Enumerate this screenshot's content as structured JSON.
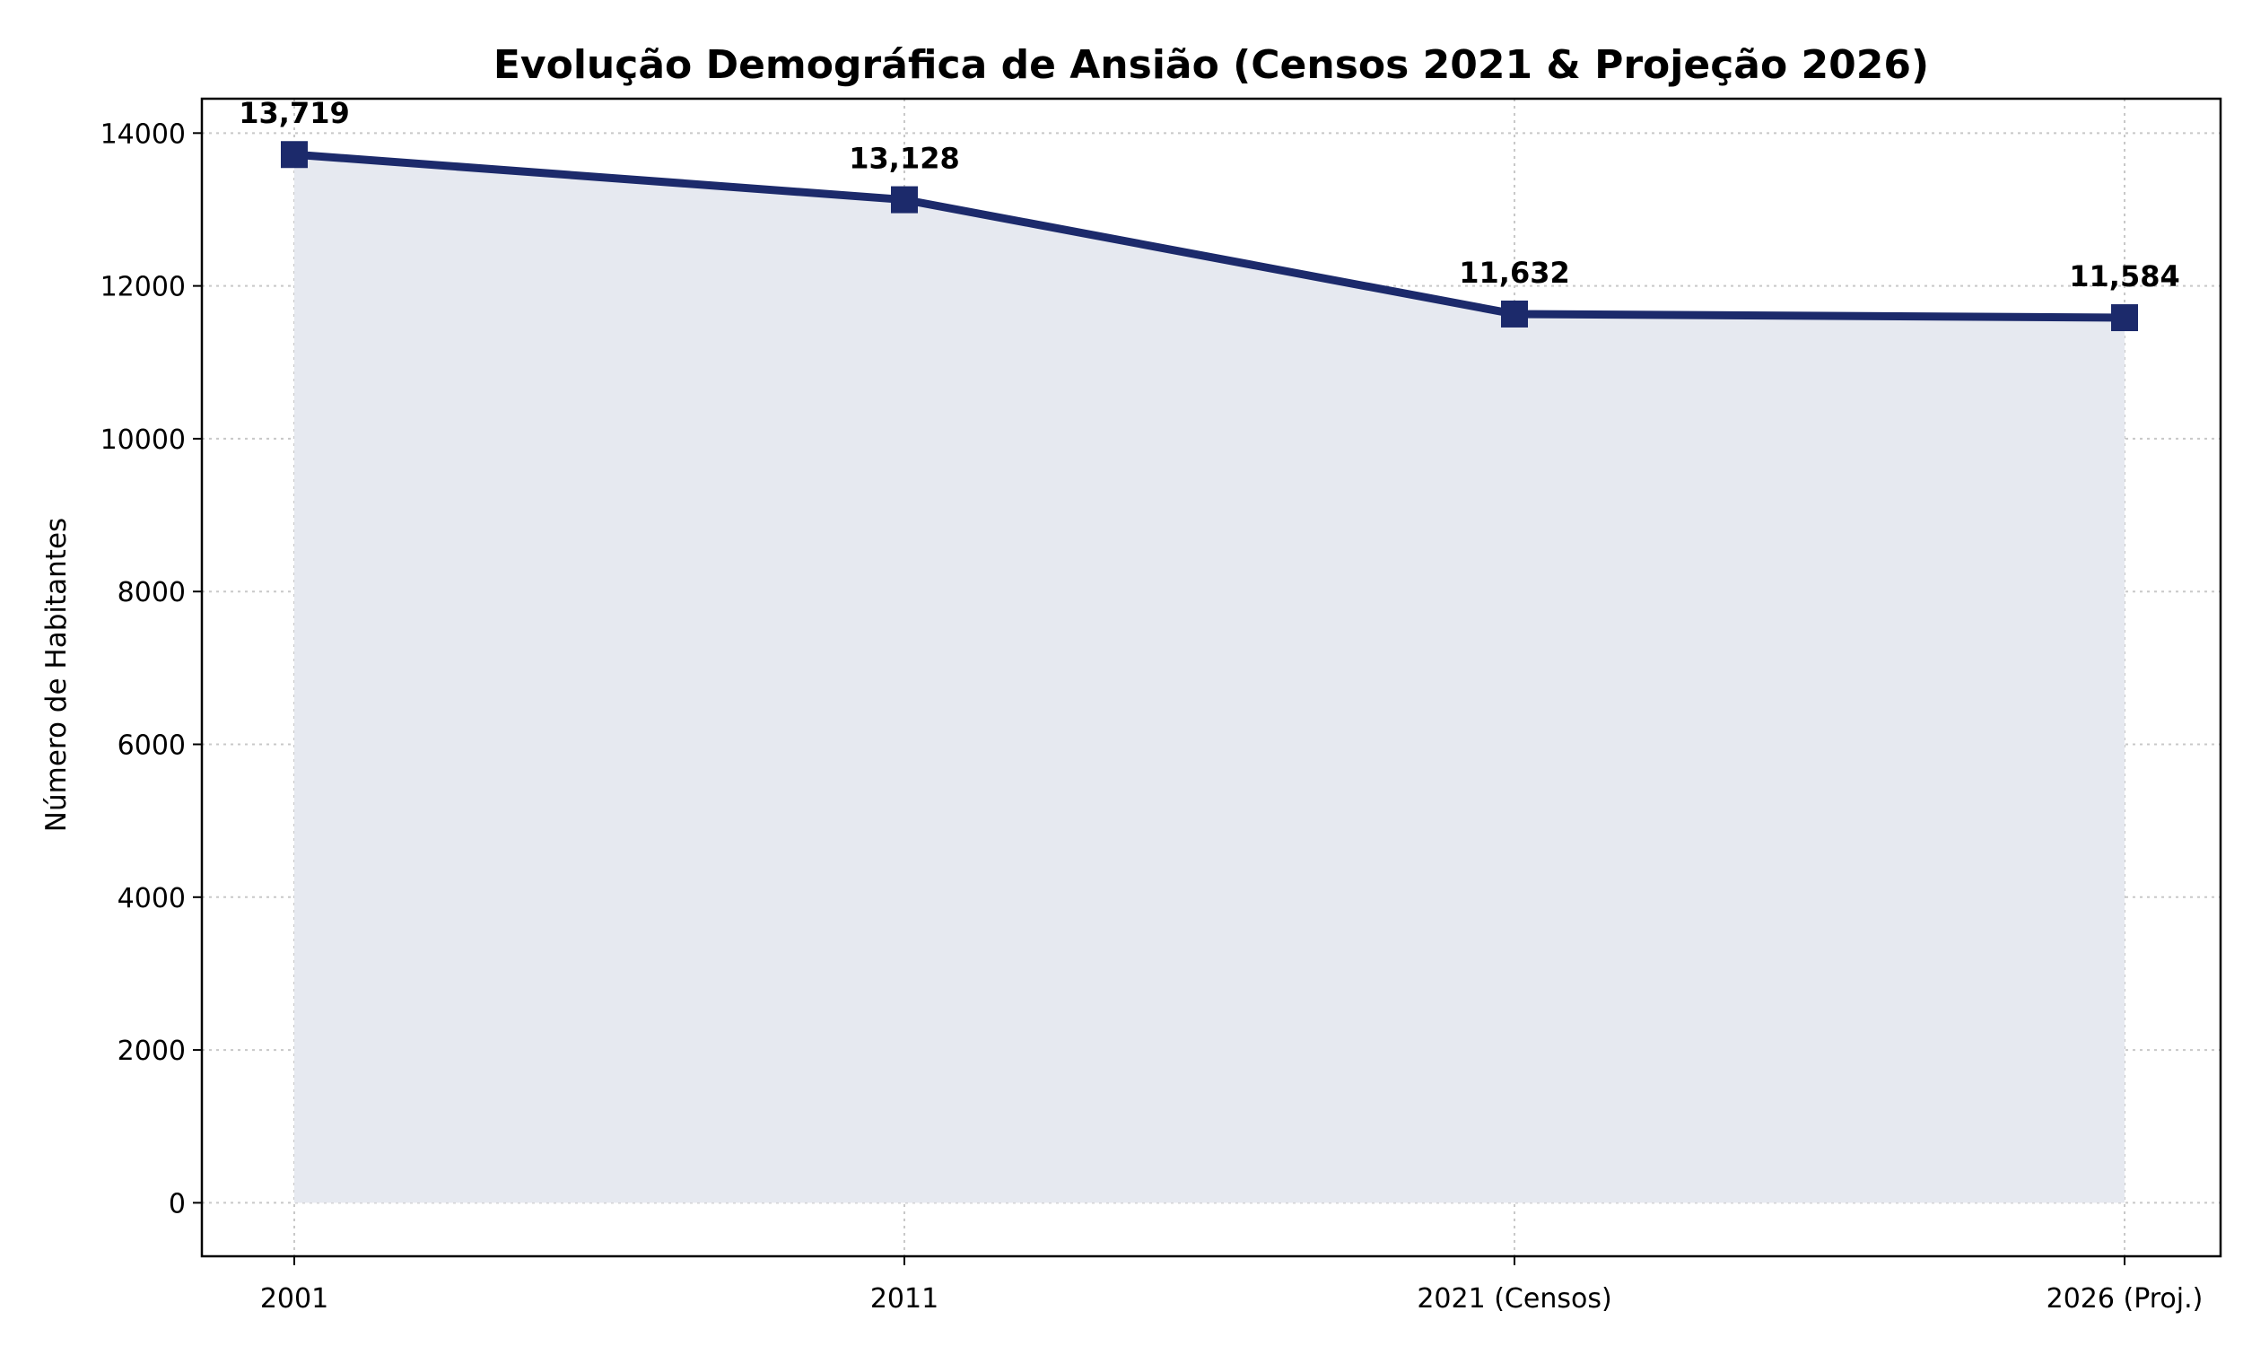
{
  "chart_data": {
    "type": "area",
    "title": "Evolução Demográfica de Ansião (Censos 2021 & Projeção 2026)",
    "xlabel": "",
    "ylabel": "Número de Habitantes",
    "categories": [
      "2001",
      "2011",
      "2021 (Censos)",
      "2026 (Proj.)"
    ],
    "values": [
      13719,
      13128,
      11632,
      11584
    ],
    "data_labels": [
      "13,719",
      "13,128",
      "11,632",
      "11,584"
    ],
    "ylim": [
      -700,
      14450
    ],
    "yticks": [
      0,
      2000,
      4000,
      6000,
      8000,
      10000,
      12000,
      14000
    ],
    "grid": true,
    "colors": {
      "line": "#1c2a6b",
      "fill": "#e6e9f0"
    }
  }
}
